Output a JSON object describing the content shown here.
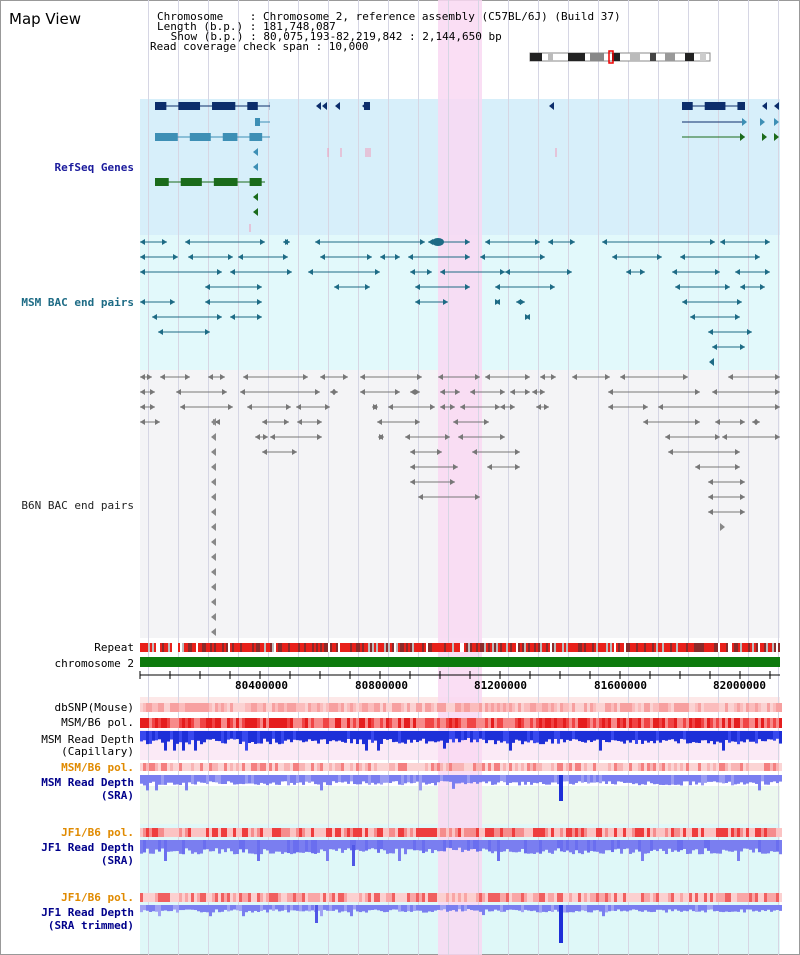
{
  "title": "Map View",
  "header": {
    "chromosome_line": "Chromosome    : Chromosome 2, reference assembly (C57BL/6J) (Build 37)",
    "length_line": "Length (b.p.) : 181,748,087",
    "show_line": " Show (b.p.) : 80,075,193-82,219,842 : 2,144,650 bp",
    "coverage_line": "Read coverage check span : 10,000"
  },
  "tracks": {
    "refseq": "RefSeq Genes",
    "msm_bac": "MSM BAC end pairs",
    "b6n_bac": "B6N BAC end pairs",
    "repeat": "Repeat",
    "chromosome": "chromosome 2",
    "dbsnp": "dbSNP(Mouse)",
    "msm_pol": "MSM/B6 pol.",
    "msm_depth_cap_1": "MSM Read Depth",
    "msm_depth_cap_2": "(Capillary)",
    "msm_pol_2": "MSM/B6 pol.",
    "msm_depth_sra_1": "MSM Read Depth",
    "msm_depth_sra_2": "(SRA)",
    "jf1_pol": "JF1/B6 pol.",
    "jf1_depth_1": "JF1 Read Depth",
    "jf1_depth_2": "(SRA)",
    "jf1_pol_2": "JF1/B6 pol.",
    "jf1_trim_1": "JF1 Read Depth",
    "jf1_trim_2": "(SRA trimmed)"
  },
  "axis_ticks": [
    "80400000",
    "80800000",
    "81200000",
    "81600000",
    "82000000"
  ],
  "colors": {
    "refseq_bg": "#d7effa",
    "msm_bg": "#e2f9fb",
    "b6n_bg": "#f4f4f6",
    "highlight": "#f9d8f2",
    "gene_dark": "#0c2d6b",
    "gene_light": "#3d8fb5",
    "gene_green": "#1b6b1b",
    "msm_pair": "#1d6b85",
    "b6n_pair": "#777777",
    "chromosome": "#0d7a0d",
    "repeat_red": "#e8201a",
    "depth_blue": "#1e2fd8",
    "depth_light": "#7a7ef0"
  }
}
